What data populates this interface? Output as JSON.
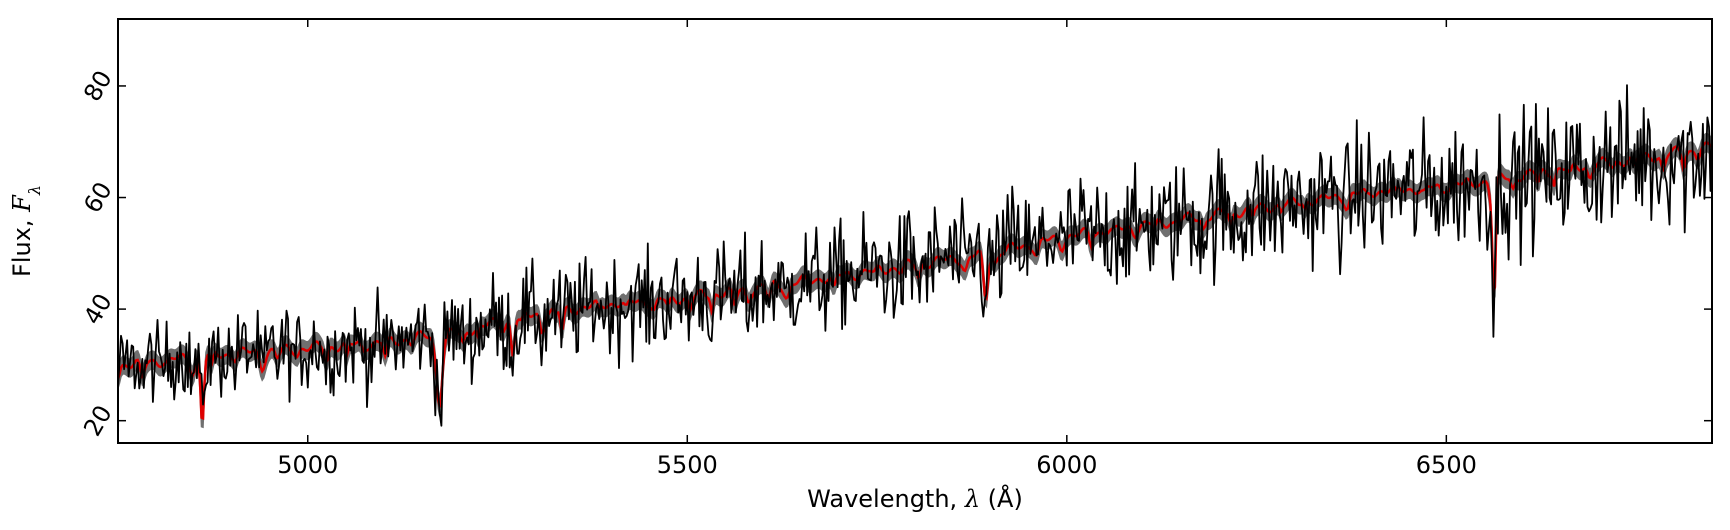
{
  "chart_data": {
    "type": "line",
    "title": "",
    "xlabel": {
      "prefix": "Wavelength, ",
      "symbol": "λ",
      "suffix": " (Å)"
    },
    "ylabel": {
      "prefix": "Flux, ",
      "symbol": "F",
      "subscript": "λ"
    },
    "xlim": [
      4750,
      6850
    ],
    "ylim": [
      16,
      92
    ],
    "xticks": [
      5000,
      5500,
      6000,
      6500
    ],
    "yticks": [
      20,
      40,
      60,
      80
    ],
    "grid": false,
    "legend": "none",
    "colors": {
      "observed": "#000000",
      "model_band": "#707070",
      "model": "#dd0000"
    },
    "continuum": {
      "x": [
        4750,
        4900,
        5000,
        5100,
        5200,
        5300,
        5400,
        5500,
        5600,
        5700,
        5800,
        5900,
        6000,
        6100,
        6200,
        6300,
        6400,
        6500,
        6600,
        6700,
        6850
      ],
      "y": [
        30,
        32,
        33,
        34,
        36,
        39,
        41,
        42,
        44,
        46,
        48,
        50,
        53,
        55,
        57,
        59,
        61,
        62,
        64,
        66,
        69
      ]
    },
    "absorption_lines": [
      {
        "x": 4861,
        "depth": 12,
        "width": 3
      },
      {
        "x": 5173,
        "depth": 10,
        "width": 6
      },
      {
        "x": 5270,
        "depth": 6,
        "width": 3
      },
      {
        "x": 5335,
        "depth": 4,
        "width": 3
      },
      {
        "x": 5893,
        "depth": 8,
        "width": 4
      },
      {
        "x": 6563,
        "depth": 22,
        "width": 3
      }
    ],
    "noise": {
      "start": 3.5,
      "end": 6.5
    },
    "band_half_width": 1.6
  }
}
